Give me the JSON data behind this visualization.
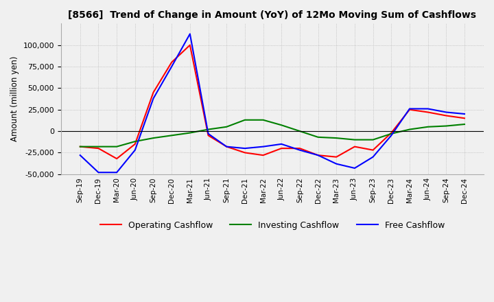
{
  "title": "[8566]  Trend of Change in Amount (YoY) of 12Mo Moving Sum of Cashflows",
  "ylabel": "Amount (million yen)",
  "x_labels": [
    "Sep-19",
    "Dec-19",
    "Mar-20",
    "Jun-20",
    "Sep-20",
    "Dec-20",
    "Mar-21",
    "Jun-21",
    "Sep-21",
    "Dec-21",
    "Mar-22",
    "Jun-22",
    "Sep-22",
    "Dec-22",
    "Mar-23",
    "Jun-23",
    "Sep-23",
    "Dec-23",
    "Mar-24",
    "Jun-24",
    "Sep-24",
    "Dec-24"
  ],
  "operating": [
    -18000,
    -20000,
    -32000,
    -15000,
    45000,
    80000,
    100000,
    -5000,
    -18000,
    -25000,
    -28000,
    -20000,
    -20000,
    -28000,
    -30000,
    -18000,
    -22000,
    -2000,
    25000,
    22000,
    18000,
    15000
  ],
  "investing": [
    -18000,
    -18000,
    -18000,
    -12000,
    -8000,
    -5000,
    -2000,
    2000,
    5000,
    13000,
    13000,
    7000,
    0,
    -7000,
    -8000,
    -10000,
    -10000,
    -3000,
    2000,
    5000,
    6000,
    8000
  ],
  "free": [
    -28000,
    -48000,
    -48000,
    -22000,
    38000,
    75000,
    113000,
    -3000,
    -18000,
    -20000,
    -18000,
    -15000,
    -22000,
    -28000,
    -38000,
    -43000,
    -30000,
    -5000,
    26000,
    26000,
    22000,
    20000
  ],
  "operating_color": "#ff0000",
  "investing_color": "#008000",
  "free_color": "#0000ff",
  "ylim": [
    -50000,
    125000
  ],
  "yticks": [
    -50000,
    -25000,
    0,
    25000,
    50000,
    75000,
    100000
  ],
  "background_color": "#f0f0f0",
  "plot_bg_color": "#f0f0f0",
  "grid_color": "#aaaaaa",
  "grid_style": "dotted"
}
